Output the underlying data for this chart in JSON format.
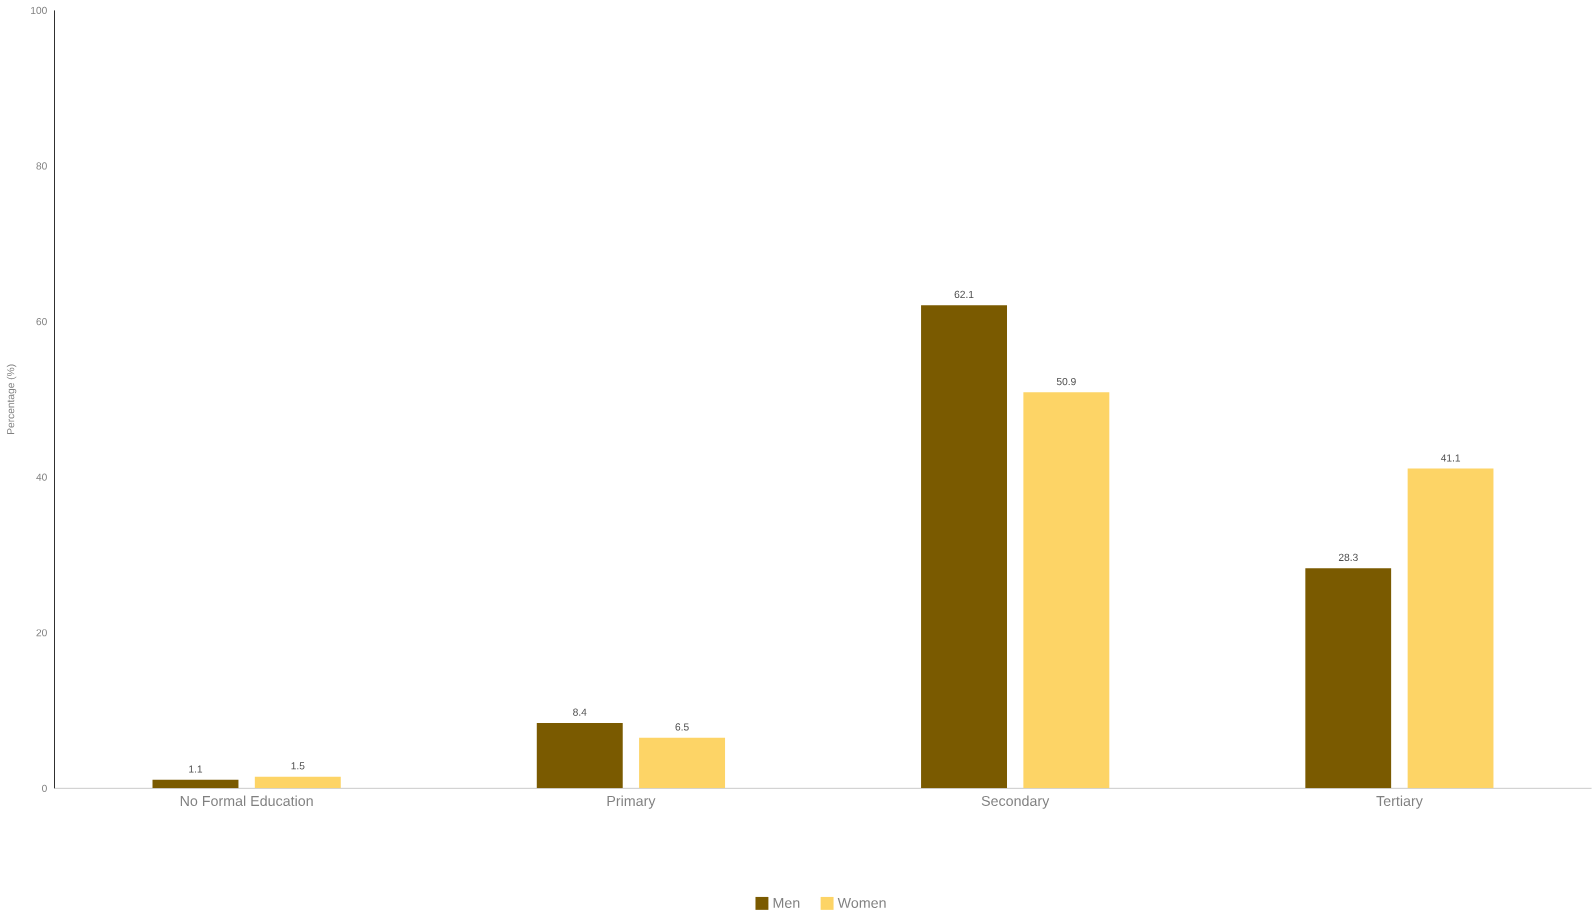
{
  "chart_data": {
    "type": "bar",
    "ylabel": "Percentage (%)",
    "categories": [
      "No Formal Education",
      "Primary",
      "Secondary",
      "Tertiary"
    ],
    "series": [
      {
        "name": "Men",
        "color": "#7a5a00",
        "values": [
          1.1,
          8.4,
          62.1,
          28.3
        ]
      },
      {
        "name": "Women",
        "color": "#fdd466",
        "values": [
          1.5,
          6.5,
          50.9,
          41.1
        ]
      }
    ],
    "ylim": [
      0,
      100
    ],
    "yticks": [
      0,
      20,
      40,
      60,
      80,
      100
    ],
    "data_labels": true,
    "legend": "bottom",
    "grid": false
  }
}
